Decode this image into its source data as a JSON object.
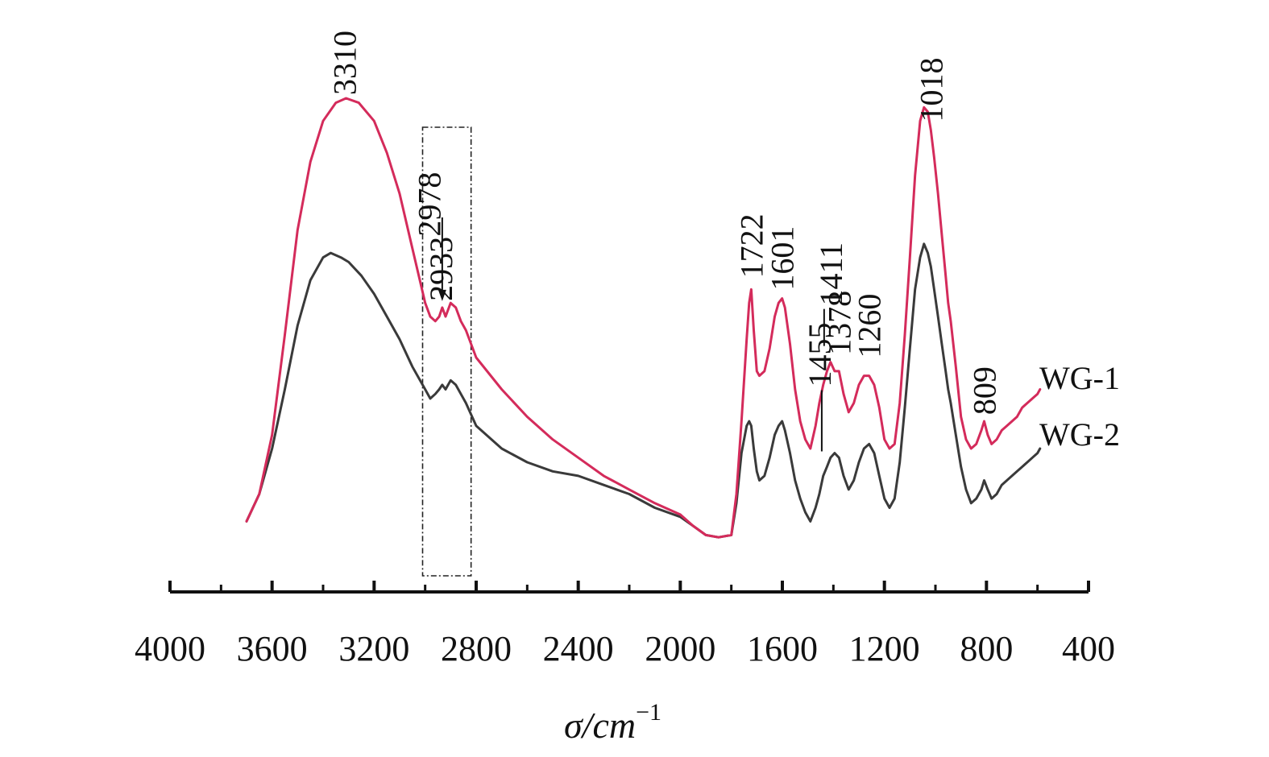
{
  "chart_data": {
    "type": "line",
    "title": "",
    "xlabel": "σ/cm",
    "xlabel_sup": "−1",
    "ylabel": "",
    "xlim": [
      4000,
      400
    ],
    "x_reversed": true,
    "x_ticks": [
      4000,
      3600,
      3200,
      2800,
      2400,
      2000,
      1600,
      1200,
      800,
      400
    ],
    "x_tick_labels": [
      "4000",
      "3600",
      "3200",
      "2800",
      "2400",
      "2000",
      "1600",
      "1200",
      "800",
      "400"
    ],
    "y_axis_visible": false,
    "grid": false,
    "legend": "inline labels at right end of each curve",
    "series_label_wg1": "WG-1",
    "series_label_wg2": "WG-2",
    "series": [
      {
        "name": "WG-1",
        "color": "#d42b5b",
        "points": [
          [
            3700,
            0.04
          ],
          [
            3650,
            0.1
          ],
          [
            3600,
            0.23
          ],
          [
            3550,
            0.45
          ],
          [
            3500,
            0.68
          ],
          [
            3450,
            0.83
          ],
          [
            3400,
            0.92
          ],
          [
            3350,
            0.96
          ],
          [
            3310,
            0.97
          ],
          [
            3260,
            0.96
          ],
          [
            3200,
            0.92
          ],
          [
            3150,
            0.85
          ],
          [
            3100,
            0.76
          ],
          [
            3050,
            0.64
          ],
          [
            3000,
            0.52
          ],
          [
            2980,
            0.49
          ],
          [
            2960,
            0.48
          ],
          [
            2945,
            0.49
          ],
          [
            2933,
            0.51
          ],
          [
            2920,
            0.49
          ],
          [
            2900,
            0.52
          ],
          [
            2880,
            0.51
          ],
          [
            2860,
            0.48
          ],
          [
            2840,
            0.46
          ],
          [
            2800,
            0.4
          ],
          [
            2700,
            0.33
          ],
          [
            2600,
            0.27
          ],
          [
            2500,
            0.22
          ],
          [
            2400,
            0.18
          ],
          [
            2300,
            0.14
          ],
          [
            2200,
            0.11
          ],
          [
            2100,
            0.08
          ],
          [
            2000,
            0.055
          ],
          [
            1950,
            0.03
          ],
          [
            1900,
            0.01
          ],
          [
            1850,
            0.005
          ],
          [
            1800,
            0.01
          ],
          [
            1780,
            0.1
          ],
          [
            1760,
            0.26
          ],
          [
            1740,
            0.44
          ],
          [
            1730,
            0.52
          ],
          [
            1722,
            0.55
          ],
          [
            1712,
            0.46
          ],
          [
            1700,
            0.37
          ],
          [
            1690,
            0.36
          ],
          [
            1670,
            0.37
          ],
          [
            1650,
            0.42
          ],
          [
            1630,
            0.49
          ],
          [
            1615,
            0.52
          ],
          [
            1601,
            0.53
          ],
          [
            1590,
            0.51
          ],
          [
            1570,
            0.43
          ],
          [
            1550,
            0.33
          ],
          [
            1530,
            0.26
          ],
          [
            1510,
            0.22
          ],
          [
            1490,
            0.2
          ],
          [
            1470,
            0.25
          ],
          [
            1455,
            0.3
          ],
          [
            1440,
            0.34
          ],
          [
            1425,
            0.37
          ],
          [
            1411,
            0.39
          ],
          [
            1395,
            0.37
          ],
          [
            1378,
            0.37
          ],
          [
            1360,
            0.32
          ],
          [
            1340,
            0.28
          ],
          [
            1320,
            0.3
          ],
          [
            1300,
            0.34
          ],
          [
            1280,
            0.36
          ],
          [
            1260,
            0.36
          ],
          [
            1240,
            0.34
          ],
          [
            1220,
            0.29
          ],
          [
            1200,
            0.22
          ],
          [
            1180,
            0.2
          ],
          [
            1160,
            0.21
          ],
          [
            1140,
            0.3
          ],
          [
            1120,
            0.45
          ],
          [
            1100,
            0.62
          ],
          [
            1080,
            0.8
          ],
          [
            1060,
            0.92
          ],
          [
            1045,
            0.95
          ],
          [
            1030,
            0.94
          ],
          [
            1018,
            0.9
          ],
          [
            1005,
            0.84
          ],
          [
            990,
            0.76
          ],
          [
            975,
            0.67
          ],
          [
            960,
            0.58
          ],
          [
            950,
            0.52
          ],
          [
            940,
            0.48
          ],
          [
            920,
            0.38
          ],
          [
            900,
            0.27
          ],
          [
            880,
            0.22
          ],
          [
            860,
            0.2
          ],
          [
            840,
            0.21
          ],
          [
            820,
            0.24
          ],
          [
            809,
            0.26
          ],
          [
            795,
            0.23
          ],
          [
            780,
            0.21
          ],
          [
            760,
            0.22
          ],
          [
            740,
            0.24
          ],
          [
            720,
            0.25
          ],
          [
            700,
            0.26
          ],
          [
            680,
            0.27
          ],
          [
            660,
            0.29
          ],
          [
            640,
            0.3
          ],
          [
            620,
            0.31
          ],
          [
            600,
            0.32
          ],
          [
            590,
            0.33
          ]
        ]
      },
      {
        "name": "WG-2",
        "color": "#3a3a3a",
        "points": [
          [
            3700,
            0.04
          ],
          [
            3650,
            0.1
          ],
          [
            3600,
            0.2
          ],
          [
            3550,
            0.33
          ],
          [
            3500,
            0.47
          ],
          [
            3450,
            0.57
          ],
          [
            3400,
            0.62
          ],
          [
            3370,
            0.63
          ],
          [
            3330,
            0.62
          ],
          [
            3300,
            0.61
          ],
          [
            3250,
            0.58
          ],
          [
            3200,
            0.54
          ],
          [
            3150,
            0.49
          ],
          [
            3100,
            0.44
          ],
          [
            3050,
            0.38
          ],
          [
            3000,
            0.33
          ],
          [
            2980,
            0.31
          ],
          [
            2960,
            0.32
          ],
          [
            2945,
            0.33
          ],
          [
            2933,
            0.34
          ],
          [
            2920,
            0.33
          ],
          [
            2900,
            0.35
          ],
          [
            2880,
            0.34
          ],
          [
            2860,
            0.32
          ],
          [
            2840,
            0.3
          ],
          [
            2800,
            0.25
          ],
          [
            2700,
            0.2
          ],
          [
            2600,
            0.17
          ],
          [
            2500,
            0.15
          ],
          [
            2400,
            0.14
          ],
          [
            2300,
            0.12
          ],
          [
            2200,
            0.1
          ],
          [
            2100,
            0.07
          ],
          [
            2000,
            0.05
          ],
          [
            1950,
            0.03
          ],
          [
            1900,
            0.01
          ],
          [
            1850,
            0.005
          ],
          [
            1800,
            0.01
          ],
          [
            1780,
            0.08
          ],
          [
            1760,
            0.19
          ],
          [
            1740,
            0.25
          ],
          [
            1730,
            0.26
          ],
          [
            1722,
            0.25
          ],
          [
            1712,
            0.2
          ],
          [
            1700,
            0.15
          ],
          [
            1690,
            0.13
          ],
          [
            1670,
            0.14
          ],
          [
            1650,
            0.18
          ],
          [
            1630,
            0.23
          ],
          [
            1615,
            0.25
          ],
          [
            1601,
            0.26
          ],
          [
            1590,
            0.24
          ],
          [
            1570,
            0.19
          ],
          [
            1550,
            0.13
          ],
          [
            1530,
            0.09
          ],
          [
            1510,
            0.06
          ],
          [
            1490,
            0.04
          ],
          [
            1470,
            0.07
          ],
          [
            1455,
            0.1
          ],
          [
            1440,
            0.14
          ],
          [
            1425,
            0.16
          ],
          [
            1411,
            0.18
          ],
          [
            1395,
            0.19
          ],
          [
            1378,
            0.18
          ],
          [
            1360,
            0.14
          ],
          [
            1340,
            0.11
          ],
          [
            1320,
            0.13
          ],
          [
            1300,
            0.17
          ],
          [
            1280,
            0.2
          ],
          [
            1260,
            0.21
          ],
          [
            1240,
            0.19
          ],
          [
            1220,
            0.14
          ],
          [
            1200,
            0.09
          ],
          [
            1180,
            0.07
          ],
          [
            1160,
            0.09
          ],
          [
            1140,
            0.17
          ],
          [
            1120,
            0.29
          ],
          [
            1100,
            0.42
          ],
          [
            1080,
            0.55
          ],
          [
            1060,
            0.62
          ],
          [
            1045,
            0.65
          ],
          [
            1030,
            0.63
          ],
          [
            1018,
            0.6
          ],
          [
            1005,
            0.55
          ],
          [
            990,
            0.49
          ],
          [
            975,
            0.43
          ],
          [
            960,
            0.37
          ],
          [
            950,
            0.33
          ],
          [
            940,
            0.3
          ],
          [
            920,
            0.23
          ],
          [
            900,
            0.16
          ],
          [
            880,
            0.11
          ],
          [
            860,
            0.08
          ],
          [
            840,
            0.09
          ],
          [
            820,
            0.11
          ],
          [
            809,
            0.13
          ],
          [
            795,
            0.11
          ],
          [
            780,
            0.09
          ],
          [
            760,
            0.1
          ],
          [
            740,
            0.12
          ],
          [
            720,
            0.13
          ],
          [
            700,
            0.14
          ],
          [
            680,
            0.15
          ],
          [
            660,
            0.16
          ],
          [
            640,
            0.17
          ],
          [
            620,
            0.18
          ],
          [
            600,
            0.19
          ],
          [
            590,
            0.2
          ]
        ]
      }
    ],
    "peak_annotations": [
      {
        "label": "3310",
        "x": 3310,
        "series": "WG-1"
      },
      {
        "label": "2978",
        "x": 2978,
        "series": "WG-1"
      },
      {
        "label": "2933",
        "x": 2933,
        "series": "WG-1",
        "arrow": true
      },
      {
        "label": "1722",
        "x": 1722,
        "series": "WG-1"
      },
      {
        "label": "1601",
        "x": 1601,
        "series": "WG-1"
      },
      {
        "label": "1455",
        "x": 1455,
        "series": "WG-1"
      },
      {
        "label": "1411",
        "x": 1411,
        "series": "WG-1"
      },
      {
        "label": "1378",
        "x": 1378,
        "series": "WG-1"
      },
      {
        "label": "1260",
        "x": 1260,
        "series": "WG-1"
      },
      {
        "label": "1018",
        "x": 1018,
        "series": "WG-1"
      },
      {
        "label": "809",
        "x": 809,
        "series": "WG-1"
      }
    ],
    "highlight_box": {
      "x_from": 3010,
      "x_to": 2820,
      "style": "dash-dot"
    }
  }
}
